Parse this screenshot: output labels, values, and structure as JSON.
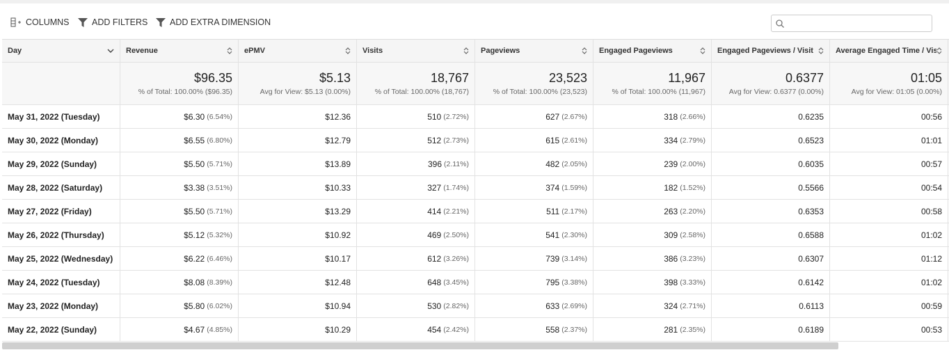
{
  "toolbar": {
    "buttons": [
      "COLUMNS",
      "ADD FILTERS",
      "ADD EXTRA DIMENSION"
    ]
  },
  "table": {
    "columns": [
      "Day",
      "Revenue",
      "ePMV",
      "Visits",
      "Pageviews",
      "Engaged Pageviews",
      "Engaged Pageviews / Visit",
      "Average Engaged Time / Visit"
    ],
    "totals": [
      {
        "value": "$96.35",
        "note": "% of Total: 100.00% ($96.35)"
      },
      {
        "value": "$5.13",
        "note": "Avg for View: $5.13 (0.00%)"
      },
      {
        "value": "18,767",
        "note": "% of Total: 100.00% (18,767)"
      },
      {
        "value": "23,523",
        "note": "% of Total: 100.00% (23,523)"
      },
      {
        "value": "11,967",
        "note": "% of Total: 100.00% (11,967)"
      },
      {
        "value": "0.6377",
        "note": "Avg for View: 0.6377 (0.00%)"
      },
      {
        "value": "01:05",
        "note": "Avg for View: 01:05 (0.00%)"
      }
    ],
    "rows": [
      {
        "day": "May 31, 2022 (Tuesday)",
        "cells": [
          [
            "$6.30",
            "(6.54%)"
          ],
          [
            "$12.36"
          ],
          [
            "510",
            "(2.72%)"
          ],
          [
            "627",
            "(2.67%)"
          ],
          [
            "318",
            "(2.66%)"
          ],
          [
            "0.6235"
          ],
          [
            "00:56"
          ]
        ]
      },
      {
        "day": "May 30, 2022 (Monday)",
        "cells": [
          [
            "$6.55",
            "(6.80%)"
          ],
          [
            "$12.79"
          ],
          [
            "512",
            "(2.73%)"
          ],
          [
            "615",
            "(2.61%)"
          ],
          [
            "334",
            "(2.79%)"
          ],
          [
            "0.6523"
          ],
          [
            "01:01"
          ]
        ]
      },
      {
        "day": "May 29, 2022 (Sunday)",
        "cells": [
          [
            "$5.50",
            "(5.71%)"
          ],
          [
            "$13.89"
          ],
          [
            "396",
            "(2.11%)"
          ],
          [
            "482",
            "(2.05%)"
          ],
          [
            "239",
            "(2.00%)"
          ],
          [
            "0.6035"
          ],
          [
            "00:57"
          ]
        ]
      },
      {
        "day": "May 28, 2022 (Saturday)",
        "cells": [
          [
            "$3.38",
            "(3.51%)"
          ],
          [
            "$10.33"
          ],
          [
            "327",
            "(1.74%)"
          ],
          [
            "374",
            "(1.59%)"
          ],
          [
            "182",
            "(1.52%)"
          ],
          [
            "0.5566"
          ],
          [
            "00:54"
          ]
        ]
      },
      {
        "day": "May 27, 2022 (Friday)",
        "cells": [
          [
            "$5.50",
            "(5.71%)"
          ],
          [
            "$13.29"
          ],
          [
            "414",
            "(2.21%)"
          ],
          [
            "511",
            "(2.17%)"
          ],
          [
            "263",
            "(2.20%)"
          ],
          [
            "0.6353"
          ],
          [
            "00:58"
          ]
        ]
      },
      {
        "day": "May 26, 2022 (Thursday)",
        "cells": [
          [
            "$5.12",
            "(5.32%)"
          ],
          [
            "$10.92"
          ],
          [
            "469",
            "(2.50%)"
          ],
          [
            "541",
            "(2.30%)"
          ],
          [
            "309",
            "(2.58%)"
          ],
          [
            "0.6588"
          ],
          [
            "01:02"
          ]
        ]
      },
      {
        "day": "May 25, 2022 (Wednesday)",
        "cells": [
          [
            "$6.22",
            "(6.46%)"
          ],
          [
            "$10.17"
          ],
          [
            "612",
            "(3.26%)"
          ],
          [
            "739",
            "(3.14%)"
          ],
          [
            "386",
            "(3.23%)"
          ],
          [
            "0.6307"
          ],
          [
            "01:12"
          ]
        ]
      },
      {
        "day": "May 24, 2022 (Tuesday)",
        "cells": [
          [
            "$8.08",
            "(8.39%)"
          ],
          [
            "$12.48"
          ],
          [
            "648",
            "(3.45%)"
          ],
          [
            "795",
            "(3.38%)"
          ],
          [
            "398",
            "(3.33%)"
          ],
          [
            "0.6142"
          ],
          [
            "01:02"
          ]
        ]
      },
      {
        "day": "May 23, 2022 (Monday)",
        "cells": [
          [
            "$5.80",
            "(6.02%)"
          ],
          [
            "$10.94"
          ],
          [
            "530",
            "(2.82%)"
          ],
          [
            "633",
            "(2.69%)"
          ],
          [
            "324",
            "(2.71%)"
          ],
          [
            "0.6113"
          ],
          [
            "00:59"
          ]
        ]
      },
      {
        "day": "May 22, 2022 (Sunday)",
        "cells": [
          [
            "$4.67",
            "(4.85%)"
          ],
          [
            "$10.29"
          ],
          [
            "454",
            "(2.42%)"
          ],
          [
            "558",
            "(2.37%)"
          ],
          [
            "281",
            "(2.35%)"
          ],
          [
            "0.6189"
          ],
          [
            "00:53"
          ]
        ]
      }
    ]
  }
}
